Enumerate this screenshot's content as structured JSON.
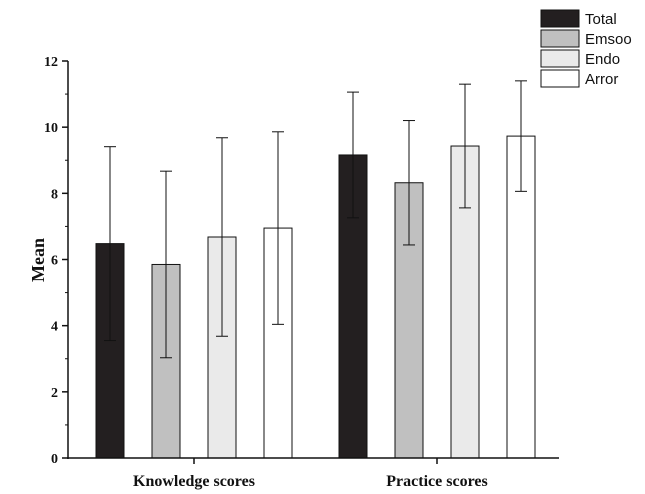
{
  "chart_data": {
    "type": "bar",
    "title": "",
    "xlabel": "",
    "ylabel": "Mean",
    "ylim": [
      0,
      12
    ],
    "yticks": [
      0,
      2,
      4,
      6,
      8,
      10,
      12
    ],
    "grid": false,
    "legend_position": "top-right",
    "categories": [
      "Knowledge scores",
      "Practice scores"
    ],
    "series": [
      {
        "name": "Total",
        "color": "#231f20",
        "values": [
          6.48,
          9.16
        ],
        "errors": [
          2.93,
          1.9
        ]
      },
      {
        "name": "Emsoo",
        "color": "#c0c0c0",
        "values": [
          5.85,
          8.32
        ],
        "errors": [
          2.82,
          1.88
        ]
      },
      {
        "name": "Endo",
        "color": "#eaeaea",
        "values": [
          6.68,
          9.43
        ],
        "errors": [
          3.0,
          1.87
        ]
      },
      {
        "name": "Arror",
        "color": "#ffffff",
        "values": [
          6.95,
          9.73
        ],
        "errors": [
          2.91,
          1.67
        ]
      }
    ]
  }
}
